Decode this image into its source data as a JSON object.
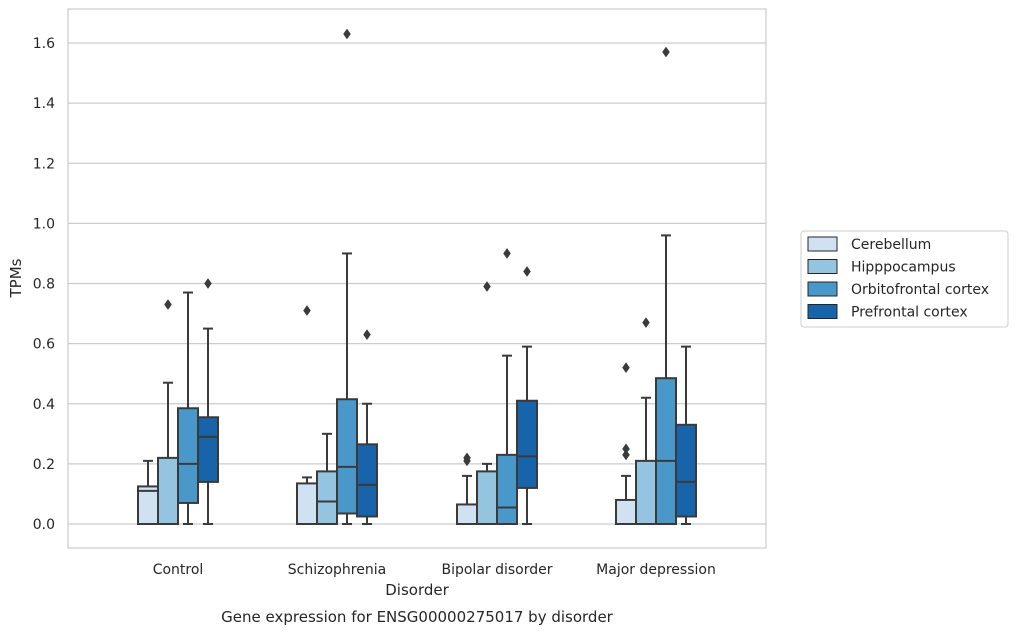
{
  "chart_data": {
    "type": "box",
    "caption": "Gene expression for ENSG00000275017 by disorder",
    "xlabel": "Disorder",
    "ylabel": "TPMs",
    "ylim": [
      -0.08,
      1.72
    ],
    "yticks": [
      "0.0",
      "0.2",
      "0.4",
      "0.6",
      "0.8",
      "1.0",
      "1.2",
      "1.4",
      "1.6"
    ],
    "grid": true,
    "legend_position": "right",
    "categories": [
      "Control",
      "Schizophrenia",
      "Bipolar disorder",
      "Major depression"
    ],
    "series": [
      {
        "name": "Cerebellum",
        "color": "#d0e1f2",
        "boxes": [
          {
            "min": 0.0,
            "q1": 0.0,
            "median": 0.11,
            "q3": 0.125,
            "max": 0.21,
            "outliers": []
          },
          {
            "min": 0.0,
            "q1": 0.0,
            "median": 0.0,
            "q3": 0.135,
            "max": 0.155,
            "outliers": [
              0.71
            ]
          },
          {
            "min": 0.0,
            "q1": 0.0,
            "median": 0.0,
            "q3": 0.065,
            "max": 0.16,
            "outliers": [
              0.21,
              0.22
            ]
          },
          {
            "min": 0.0,
            "q1": 0.0,
            "median": 0.0,
            "q3": 0.08,
            "max": 0.16,
            "outliers": [
              0.23,
              0.25,
              0.52
            ]
          }
        ]
      },
      {
        "name": "Hipppocampus",
        "color": "#94c4df",
        "boxes": [
          {
            "min": 0.0,
            "q1": 0.0,
            "median": 0.0,
            "q3": 0.22,
            "max": 0.47,
            "outliers": [
              0.73
            ]
          },
          {
            "min": 0.0,
            "q1": 0.0,
            "median": 0.075,
            "q3": 0.175,
            "max": 0.3,
            "outliers": []
          },
          {
            "min": 0.0,
            "q1": 0.0,
            "median": 0.0,
            "q3": 0.175,
            "max": 0.2,
            "outliers": [
              0.79
            ]
          },
          {
            "min": 0.0,
            "q1": 0.0,
            "median": 0.0,
            "q3": 0.21,
            "max": 0.42,
            "outliers": [
              0.67
            ]
          }
        ]
      },
      {
        "name": "Orbitofrontal cortex",
        "color": "#4a98c9",
        "boxes": [
          {
            "min": 0.0,
            "q1": 0.07,
            "median": 0.2,
            "q3": 0.385,
            "max": 0.77,
            "outliers": []
          },
          {
            "min": 0.0,
            "q1": 0.035,
            "median": 0.19,
            "q3": 0.415,
            "max": 0.9,
            "outliers": [
              1.63
            ]
          },
          {
            "min": 0.0,
            "q1": 0.0,
            "median": 0.055,
            "q3": 0.23,
            "max": 0.56,
            "outliers": [
              0.9
            ]
          },
          {
            "min": 0.0,
            "q1": 0.0,
            "median": 0.21,
            "q3": 0.485,
            "max": 0.96,
            "outliers": [
              1.57
            ]
          }
        ]
      },
      {
        "name": "Prefrontal cortex",
        "color": "#1764ab",
        "boxes": [
          {
            "min": 0.0,
            "q1": 0.14,
            "median": 0.29,
            "q3": 0.355,
            "max": 0.65,
            "outliers": [
              0.8
            ]
          },
          {
            "min": 0.0,
            "q1": 0.025,
            "median": 0.13,
            "q3": 0.265,
            "max": 0.4,
            "outliers": [
              0.63
            ]
          },
          {
            "min": 0.0,
            "q1": 0.12,
            "median": 0.225,
            "q3": 0.41,
            "max": 0.59,
            "outliers": [
              0.84
            ]
          },
          {
            "min": 0.0,
            "q1": 0.025,
            "median": 0.14,
            "q3": 0.33,
            "max": 0.59,
            "outliers": []
          }
        ]
      }
    ]
  }
}
